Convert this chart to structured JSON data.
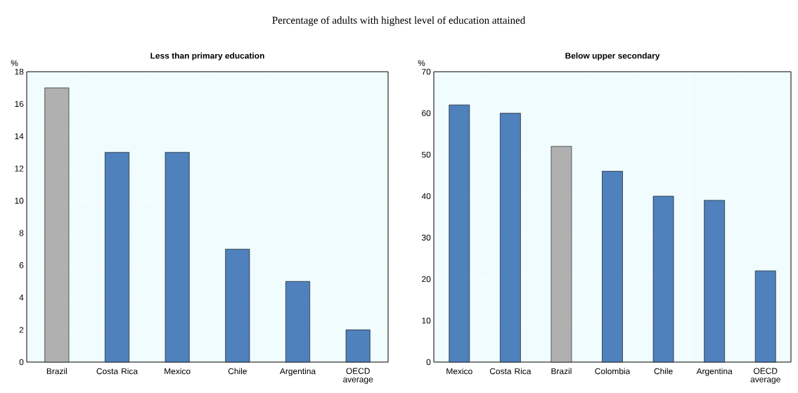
{
  "chart_data": [
    {
      "type": "bar",
      "title": "Less than primary education",
      "ylabel": "%",
      "annotations": [
        "Percentage of adults with highest level of education attained"
      ],
      "categories": [
        "Brazil",
        "Costa Rica",
        "Mexico",
        "Chile",
        "Argentina",
        "OECD average"
      ],
      "values": [
        17,
        13,
        13,
        7,
        5,
        2
      ],
      "colors": [
        "#b0b0b0",
        "#4f81bd",
        "#4f81bd",
        "#4f81bd",
        "#4f81bd",
        "#4f81bd"
      ],
      "ylim": [
        0,
        18
      ],
      "yticks": [
        0,
        2,
        4,
        6,
        8,
        10,
        12,
        14,
        16,
        18
      ],
      "grid": true
    },
    {
      "type": "bar",
      "title": "Below upper secondary",
      "ylabel": "%",
      "categories": [
        "Mexico",
        "Costa Rica",
        "Brazil",
        "Colombia",
        "Chile",
        "Argentina",
        "OECD average"
      ],
      "values": [
        62,
        60,
        52,
        46,
        40,
        39,
        22
      ],
      "colors": [
        "#4f81bd",
        "#4f81bd",
        "#b0b0b0",
        "#4f81bd",
        "#4f81bd",
        "#4f81bd",
        "#4f81bd"
      ],
      "ylim": [
        0,
        70
      ],
      "yticks": [
        0,
        10,
        20,
        30,
        40,
        50,
        60,
        70
      ],
      "grid": true
    }
  ]
}
